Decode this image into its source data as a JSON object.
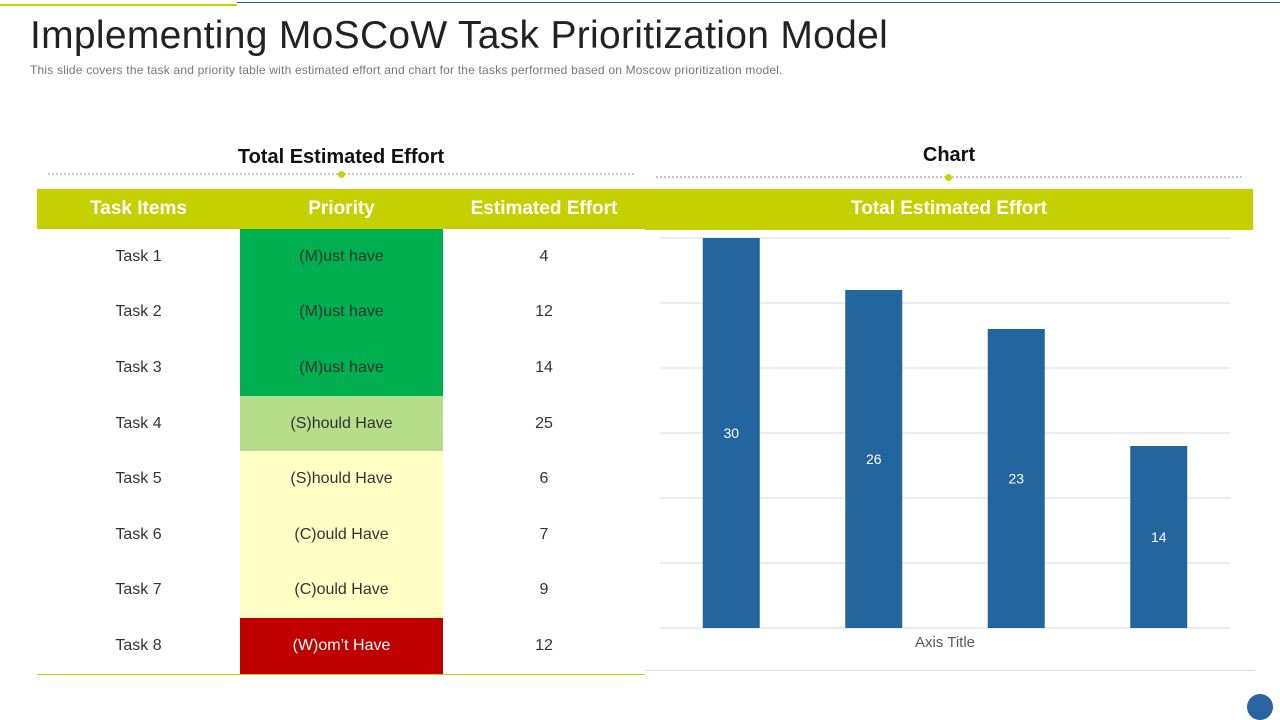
{
  "slide": {
    "title": "Implementing MoSCoW Task Prioritization Model",
    "subtitle": "This slide covers the task and priority table with estimated effort and chart for the tasks performed based on Moscow prioritization model."
  },
  "left_section": {
    "heading": "Total Estimated Effort",
    "columns": [
      "Task Items",
      "Priority",
      "Estimated Effort"
    ],
    "rows": [
      {
        "task": "Task 1",
        "priority": "(M)ust have",
        "effort": "4",
        "color": "#00b050"
      },
      {
        "task": "Task 2",
        "priority": "(M)ust have",
        "effort": "12",
        "color": "#00b050"
      },
      {
        "task": "Task 3",
        "priority": "(M)ust have",
        "effort": "14",
        "color": "#00b050"
      },
      {
        "task": "Task 4",
        "priority": "(S)hould Have",
        "effort": "25",
        "color": "#b6dd8a"
      },
      {
        "task": "Task 5",
        "priority": "(S)hould Have",
        "effort": "6",
        "color": "#ffffc6"
      },
      {
        "task": "Task 6",
        "priority": "(C)ould Have",
        "effort": "7",
        "color": "#ffffc6"
      },
      {
        "task": "Task 7",
        "priority": "(C)ould Have",
        "effort": "9",
        "color": "#ffffc6"
      },
      {
        "task": "Task 8",
        "priority": "(W)om’t Have",
        "effort": "12",
        "color": "#c00000"
      }
    ]
  },
  "right_section": {
    "heading": "Chart",
    "panel_title": "Total Estimated Effort"
  },
  "colors": {
    "accent_green": "#c5d000",
    "bar_blue": "#23659f",
    "title_text": "#222222"
  },
  "chart_data": {
    "type": "bar",
    "categories": [
      "",
      "",
      "",
      ""
    ],
    "values": [
      30,
      26,
      23,
      14
    ],
    "title": "",
    "xlabel": "Axis Title",
    "ylabel": "",
    "ylim": [
      0,
      30
    ],
    "grid": true,
    "data_labels": true
  }
}
